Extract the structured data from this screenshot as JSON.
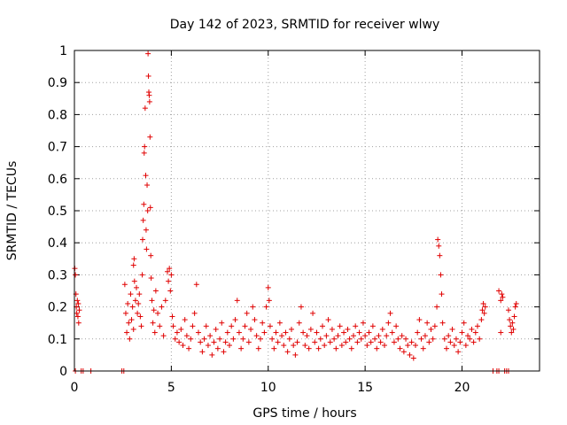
{
  "chart_data": {
    "type": "scatter",
    "title": "Day 142 of 2023, SRMTID for receiver wlwy",
    "xlabel": "GPS time / hours",
    "ylabel": "SRMTID / TECUs",
    "xlim": [
      0,
      24
    ],
    "ylim": [
      0,
      1
    ],
    "grid": true,
    "legend": "none",
    "marker": "+",
    "color": "#e00000",
    "x_ticks": [
      0,
      5,
      10,
      15,
      20
    ],
    "x_tick_labels": [
      "0",
      "5",
      "10",
      "15",
      "20"
    ],
    "y_ticks": [
      0,
      0.1,
      0.2,
      0.3,
      0.4,
      0.5,
      0.6,
      0.7,
      0.8,
      0.9,
      1
    ],
    "y_tick_labels": [
      "0",
      "0.1",
      "0.2",
      "0.3",
      "0.4",
      "0.5",
      "0.6",
      "0.7",
      "0.8",
      "0.9",
      "1"
    ],
    "series": [
      {
        "name": "SRMTID",
        "points": [
          [
            0.02,
            0.32
          ],
          [
            0.05,
            0.3
          ],
          [
            0.08,
            0.24
          ],
          [
            0.1,
            0.2
          ],
          [
            0.12,
            0.18
          ],
          [
            0.15,
            0.22
          ],
          [
            0.18,
            0.17
          ],
          [
            0.2,
            0.21
          ],
          [
            0.22,
            0.15
          ],
          [
            0.25,
            0.19
          ],
          [
            0.05,
            0.0
          ],
          [
            0.35,
            0.0
          ],
          [
            0.45,
            0.0
          ],
          [
            0.85,
            0.0
          ],
          [
            2.45,
            0.0
          ],
          [
            2.55,
            0.0
          ],
          [
            2.6,
            0.27
          ],
          [
            2.65,
            0.18
          ],
          [
            2.7,
            0.12
          ],
          [
            2.75,
            0.21
          ],
          [
            2.8,
            0.15
          ],
          [
            2.85,
            0.1
          ],
          [
            2.9,
            0.24
          ],
          [
            2.95,
            0.16
          ],
          [
            3.0,
            0.2
          ],
          [
            3.05,
            0.13
          ],
          [
            3.05,
            0.33
          ],
          [
            3.08,
            0.35
          ],
          [
            3.1,
            0.28
          ],
          [
            3.15,
            0.22
          ],
          [
            3.2,
            0.26
          ],
          [
            3.25,
            0.18
          ],
          [
            3.3,
            0.21
          ],
          [
            3.35,
            0.24
          ],
          [
            3.4,
            0.17
          ],
          [
            3.45,
            0.14
          ],
          [
            3.5,
            0.3
          ],
          [
            3.52,
            0.41
          ],
          [
            3.55,
            0.47
          ],
          [
            3.58,
            0.52
          ],
          [
            3.6,
            0.68
          ],
          [
            3.62,
            0.7
          ],
          [
            3.65,
            0.82
          ],
          [
            3.68,
            0.61
          ],
          [
            3.7,
            0.44
          ],
          [
            3.72,
            0.38
          ],
          [
            3.75,
            0.58
          ],
          [
            3.78,
            0.5
          ],
          [
            3.8,
            0.99
          ],
          [
            3.82,
            0.92
          ],
          [
            3.84,
            0.87
          ],
          [
            3.86,
            0.86
          ],
          [
            3.88,
            0.84
          ],
          [
            3.9,
            0.73
          ],
          [
            3.92,
            0.51
          ],
          [
            3.94,
            0.36
          ],
          [
            3.96,
            0.29
          ],
          [
            4.0,
            0.22
          ],
          [
            4.05,
            0.15
          ],
          [
            4.1,
            0.19
          ],
          [
            4.15,
            0.12
          ],
          [
            4.2,
            0.25
          ],
          [
            4.3,
            0.18
          ],
          [
            4.4,
            0.14
          ],
          [
            4.5,
            0.2
          ],
          [
            4.6,
            0.11
          ],
          [
            4.7,
            0.22
          ],
          [
            4.8,
            0.31
          ],
          [
            4.85,
            0.28
          ],
          [
            4.9,
            0.32
          ],
          [
            4.95,
            0.25
          ],
          [
            5.0,
            0.3
          ],
          [
            5.05,
            0.17
          ],
          [
            5.1,
            0.14
          ],
          [
            5.2,
            0.1
          ],
          [
            5.3,
            0.12
          ],
          [
            5.4,
            0.09
          ],
          [
            5.5,
            0.13
          ],
          [
            5.6,
            0.08
          ],
          [
            5.7,
            0.16
          ],
          [
            5.8,
            0.11
          ],
          [
            5.9,
            0.07
          ],
          [
            6.0,
            0.1
          ],
          [
            6.1,
            0.14
          ],
          [
            6.2,
            0.18
          ],
          [
            6.3,
            0.27
          ],
          [
            6.4,
            0.12
          ],
          [
            6.5,
            0.09
          ],
          [
            6.6,
            0.06
          ],
          [
            6.7,
            0.1
          ],
          [
            6.8,
            0.14
          ],
          [
            6.9,
            0.08
          ],
          [
            7.0,
            0.11
          ],
          [
            7.1,
            0.05
          ],
          [
            7.2,
            0.09
          ],
          [
            7.3,
            0.13
          ],
          [
            7.4,
            0.07
          ],
          [
            7.5,
            0.1
          ],
          [
            7.6,
            0.15
          ],
          [
            7.7,
            0.06
          ],
          [
            7.8,
            0.09
          ],
          [
            7.9,
            0.12
          ],
          [
            8.0,
            0.08
          ],
          [
            8.1,
            0.14
          ],
          [
            8.2,
            0.1
          ],
          [
            8.3,
            0.16
          ],
          [
            8.4,
            0.22
          ],
          [
            8.5,
            0.12
          ],
          [
            8.6,
            0.07
          ],
          [
            8.7,
            0.1
          ],
          [
            8.8,
            0.14
          ],
          [
            8.9,
            0.18
          ],
          [
            9.0,
            0.09
          ],
          [
            9.1,
            0.13
          ],
          [
            9.2,
            0.2
          ],
          [
            9.3,
            0.16
          ],
          [
            9.4,
            0.11
          ],
          [
            9.5,
            0.07
          ],
          [
            9.6,
            0.1
          ],
          [
            9.7,
            0.15
          ],
          [
            9.8,
            0.12
          ],
          [
            9.9,
            0.2
          ],
          [
            10.0,
            0.26
          ],
          [
            10.05,
            0.22
          ],
          [
            10.1,
            0.14
          ],
          [
            10.2,
            0.1
          ],
          [
            10.3,
            0.07
          ],
          [
            10.4,
            0.12
          ],
          [
            10.5,
            0.09
          ],
          [
            10.6,
            0.15
          ],
          [
            10.7,
            0.11
          ],
          [
            10.8,
            0.08
          ],
          [
            10.9,
            0.12
          ],
          [
            11.0,
            0.06
          ],
          [
            11.1,
            0.1
          ],
          [
            11.2,
            0.13
          ],
          [
            11.3,
            0.08
          ],
          [
            11.4,
            0.05
          ],
          [
            11.5,
            0.09
          ],
          [
            11.6,
            0.15
          ],
          [
            11.7,
            0.2
          ],
          [
            11.8,
            0.12
          ],
          [
            11.9,
            0.08
          ],
          [
            12.0,
            0.11
          ],
          [
            12.1,
            0.07
          ],
          [
            12.2,
            0.13
          ],
          [
            12.3,
            0.18
          ],
          [
            12.4,
            0.09
          ],
          [
            12.5,
            0.12
          ],
          [
            12.6,
            0.07
          ],
          [
            12.7,
            0.1
          ],
          [
            12.8,
            0.14
          ],
          [
            12.9,
            0.08
          ],
          [
            13.0,
            0.11
          ],
          [
            13.1,
            0.16
          ],
          [
            13.2,
            0.09
          ],
          [
            13.3,
            0.13
          ],
          [
            13.4,
            0.1
          ],
          [
            13.5,
            0.07
          ],
          [
            13.6,
            0.11
          ],
          [
            13.7,
            0.14
          ],
          [
            13.8,
            0.08
          ],
          [
            13.9,
            0.12
          ],
          [
            14.0,
            0.09
          ],
          [
            14.1,
            0.13
          ],
          [
            14.2,
            0.1
          ],
          [
            14.3,
            0.07
          ],
          [
            14.4,
            0.11
          ],
          [
            14.5,
            0.14
          ],
          [
            14.6,
            0.09
          ],
          [
            14.7,
            0.12
          ],
          [
            14.8,
            0.1
          ],
          [
            14.9,
            0.15
          ],
          [
            15.0,
            0.11
          ],
          [
            15.1,
            0.08
          ],
          [
            15.2,
            0.12
          ],
          [
            15.3,
            0.09
          ],
          [
            15.4,
            0.14
          ],
          [
            15.5,
            0.1
          ],
          [
            15.6,
            0.07
          ],
          [
            15.7,
            0.11
          ],
          [
            15.8,
            0.09
          ],
          [
            15.9,
            0.13
          ],
          [
            16.0,
            0.08
          ],
          [
            16.1,
            0.11
          ],
          [
            16.2,
            0.15
          ],
          [
            16.3,
            0.18
          ],
          [
            16.4,
            0.12
          ],
          [
            16.5,
            0.09
          ],
          [
            16.6,
            0.14
          ],
          [
            16.7,
            0.1
          ],
          [
            16.8,
            0.07
          ],
          [
            16.9,
            0.11
          ],
          [
            17.0,
            0.06
          ],
          [
            17.1,
            0.1
          ],
          [
            17.2,
            0.08
          ],
          [
            17.3,
            0.05
          ],
          [
            17.4,
            0.09
          ],
          [
            17.5,
            0.04
          ],
          [
            17.6,
            0.08
          ],
          [
            17.7,
            0.12
          ],
          [
            17.8,
            0.16
          ],
          [
            17.9,
            0.1
          ],
          [
            18.0,
            0.07
          ],
          [
            18.1,
            0.11
          ],
          [
            18.2,
            0.15
          ],
          [
            18.3,
            0.09
          ],
          [
            18.4,
            0.13
          ],
          [
            18.5,
            0.1
          ],
          [
            18.6,
            0.14
          ],
          [
            18.7,
            0.2
          ],
          [
            18.75,
            0.41
          ],
          [
            18.8,
            0.39
          ],
          [
            18.85,
            0.36
          ],
          [
            18.9,
            0.3
          ],
          [
            18.95,
            0.24
          ],
          [
            19.0,
            0.15
          ],
          [
            19.1,
            0.1
          ],
          [
            19.2,
            0.07
          ],
          [
            19.3,
            0.11
          ],
          [
            19.4,
            0.09
          ],
          [
            19.5,
            0.13
          ],
          [
            19.6,
            0.08
          ],
          [
            19.7,
            0.1
          ],
          [
            19.8,
            0.06
          ],
          [
            19.9,
            0.09
          ],
          [
            20.0,
            0.12
          ],
          [
            20.1,
            0.15
          ],
          [
            20.2,
            0.08
          ],
          [
            20.3,
            0.11
          ],
          [
            20.4,
            0.1
          ],
          [
            20.5,
            0.13
          ],
          [
            20.6,
            0.09
          ],
          [
            20.7,
            0.12
          ],
          [
            20.8,
            0.14
          ],
          [
            20.9,
            0.1
          ],
          [
            21.0,
            0.16
          ],
          [
            21.05,
            0.19
          ],
          [
            21.1,
            0.21
          ],
          [
            21.15,
            0.18
          ],
          [
            21.2,
            0.2
          ],
          [
            21.6,
            0.0
          ],
          [
            21.8,
            0.0
          ],
          [
            21.9,
            0.0
          ],
          [
            22.2,
            0.0
          ],
          [
            22.3,
            0.0
          ],
          [
            22.4,
            0.0
          ],
          [
            21.9,
            0.25
          ],
          [
            22.0,
            0.22
          ],
          [
            22.05,
            0.24
          ],
          [
            22.1,
            0.23
          ],
          [
            22.0,
            0.12
          ],
          [
            22.4,
            0.19
          ],
          [
            22.45,
            0.16
          ],
          [
            22.5,
            0.14
          ],
          [
            22.55,
            0.12
          ],
          [
            22.6,
            0.15
          ],
          [
            22.65,
            0.13
          ],
          [
            22.7,
            0.17
          ],
          [
            22.75,
            0.2
          ],
          [
            22.8,
            0.21
          ]
        ]
      }
    ]
  }
}
